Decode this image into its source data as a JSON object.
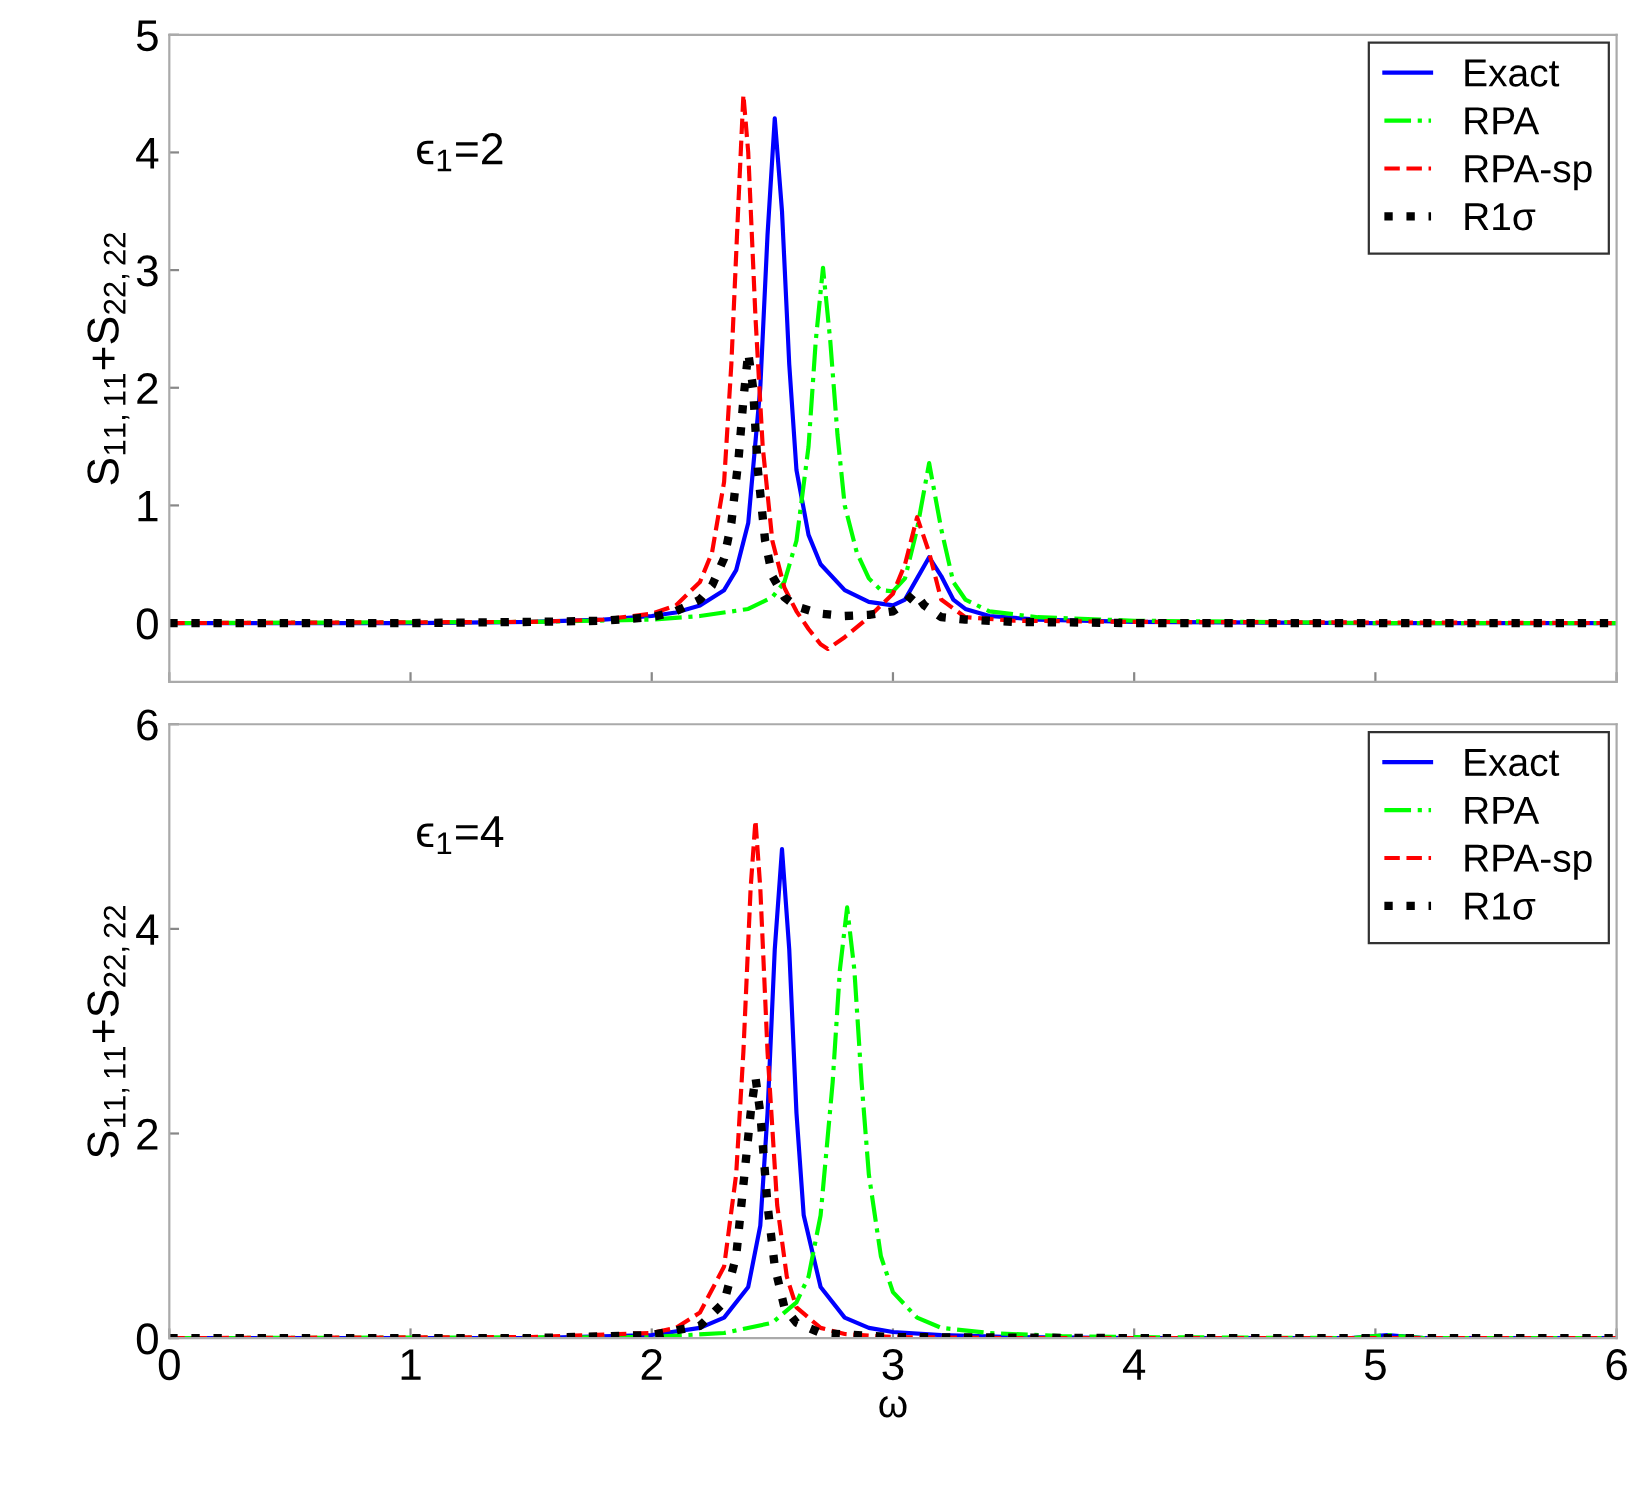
{
  "chart_data": [
    {
      "type": "line",
      "ylabel": "S$_{11,11}$+S$_{22,22}$",
      "annotations": [
        "ϵ$_{1}$=2"
      ],
      "xlim": [
        0,
        6
      ],
      "xticks": [
        0,
        1,
        2,
        3,
        4,
        5,
        6
      ],
      "ylim": [
        -0.5,
        5
      ],
      "yticks": [
        0,
        1,
        2,
        3,
        4,
        5
      ],
      "tick_labels": "y",
      "legend": "top right",
      "grid": false,
      "series": [
        {
          "name": "Exact",
          "color": "#0000ff",
          "line_style": "solid",
          "x": [
            0,
            1,
            1.5,
            1.8,
            2.0,
            2.1,
            2.2,
            2.3,
            2.35,
            2.4,
            2.45,
            2.48,
            2.51,
            2.54,
            2.57,
            2.6,
            2.65,
            2.7,
            2.8,
            2.9,
            3.0,
            3.05,
            3.1,
            3.15,
            3.2,
            3.25,
            3.3,
            3.4,
            3.6,
            4,
            5,
            6
          ],
          "values": [
            0,
            0,
            0.01,
            0.03,
            0.06,
            0.09,
            0.15,
            0.28,
            0.45,
            0.85,
            2.0,
            3.3,
            4.29,
            3.5,
            2.2,
            1.3,
            0.75,
            0.5,
            0.28,
            0.18,
            0.15,
            0.2,
            0.38,
            0.56,
            0.4,
            0.2,
            0.12,
            0.06,
            0.03,
            0.01,
            0,
            0
          ]
        },
        {
          "name": "RPA",
          "color": "#00ff00",
          "line_style": "dashdot",
          "x": [
            0,
            1.5,
            2.0,
            2.2,
            2.4,
            2.5,
            2.55,
            2.6,
            2.65,
            2.68,
            2.71,
            2.74,
            2.77,
            2.8,
            2.85,
            2.9,
            2.95,
            3.0,
            3.05,
            3.1,
            3.15,
            3.2,
            3.25,
            3.3,
            3.4,
            3.6,
            4,
            5,
            6
          ],
          "values": [
            0,
            0.01,
            0.03,
            0.06,
            0.12,
            0.22,
            0.35,
            0.7,
            1.5,
            2.4,
            3.02,
            2.4,
            1.6,
            1.0,
            0.6,
            0.38,
            0.28,
            0.27,
            0.38,
            0.8,
            1.36,
            0.8,
            0.35,
            0.2,
            0.1,
            0.05,
            0.02,
            0,
            0
          ]
        },
        {
          "name": "RPA-sp",
          "color": "#ff0000",
          "line_style": "dashed",
          "x": [
            0,
            1.5,
            1.8,
            2.0,
            2.1,
            2.2,
            2.25,
            2.3,
            2.33,
            2.36,
            2.38,
            2.4,
            2.43,
            2.46,
            2.5,
            2.55,
            2.6,
            2.65,
            2.7,
            2.73,
            2.8,
            2.9,
            3.0,
            3.05,
            3.1,
            3.15,
            3.2,
            3.3,
            3.5,
            4,
            6
          ],
          "values": [
            0,
            0.01,
            0.03,
            0.08,
            0.15,
            0.35,
            0.6,
            1.2,
            2.2,
            3.6,
            4.49,
            4.0,
            2.6,
            1.5,
            0.7,
            0.3,
            0.1,
            -0.05,
            -0.18,
            -0.22,
            -0.12,
            0.05,
            0.25,
            0.5,
            0.9,
            0.6,
            0.2,
            0.05,
            0.02,
            0.01,
            0
          ]
        },
        {
          "name": "R1σ",
          "color": "#000000",
          "line_style": "dotted",
          "x": [
            0,
            1,
            1.5,
            1.8,
            2.0,
            2.1,
            2.2,
            2.25,
            2.3,
            2.33,
            2.36,
            2.38,
            2.4,
            2.42,
            2.44,
            2.47,
            2.5,
            2.55,
            2.6,
            2.7,
            2.8,
            2.9,
            3.0,
            3.05,
            3.09,
            3.13,
            3.2,
            3.3,
            3.5,
            4,
            5,
            6
          ],
          "values": [
            0,
            0,
            0.01,
            0.02,
            0.05,
            0.1,
            0.2,
            0.32,
            0.55,
            0.85,
            1.4,
            1.9,
            2.3,
            2.0,
            1.3,
            0.7,
            0.4,
            0.22,
            0.14,
            0.08,
            0.06,
            0.07,
            0.1,
            0.17,
            0.26,
            0.15,
            0.05,
            0.03,
            0.01,
            0,
            0,
            0
          ]
        }
      ]
    },
    {
      "type": "line",
      "ylabel": "S$_{11,11}$+S$_{22,22}$",
      "xlabel": "ω",
      "annotations": [
        "ϵ$_{1}$=4"
      ],
      "xlim": [
        0,
        6
      ],
      "xticks": [
        0,
        1,
        2,
        3,
        4,
        5,
        6
      ],
      "ylim": [
        0,
        6
      ],
      "yticks": [
        0,
        2,
        4,
        6
      ],
      "legend": "top right",
      "grid": false,
      "series": [
        {
          "name": "Exact",
          "color": "#0000ff",
          "line_style": "solid",
          "x": [
            0,
            1.5,
            2.0,
            2.2,
            2.3,
            2.4,
            2.45,
            2.48,
            2.51,
            2.54,
            2.57,
            2.6,
            2.63,
            2.7,
            2.8,
            2.9,
            3.0,
            3.2,
            3.5,
            4,
            4.9,
            5.05,
            5.2,
            6
          ],
          "values": [
            0,
            0,
            0.03,
            0.1,
            0.2,
            0.5,
            1.1,
            2.2,
            3.8,
            4.78,
            3.8,
            2.2,
            1.2,
            0.5,
            0.2,
            0.1,
            0.06,
            0.03,
            0.01,
            0,
            0,
            0.03,
            0,
            0
          ]
        },
        {
          "name": "RPA",
          "color": "#00ff00",
          "line_style": "dashdot",
          "x": [
            0,
            2,
            2.3,
            2.5,
            2.6,
            2.65,
            2.7,
            2.75,
            2.78,
            2.81,
            2.84,
            2.87,
            2.9,
            2.95,
            3.0,
            3.1,
            3.2,
            3.4,
            3.7,
            4,
            4.9,
            5.05,
            5.2,
            6
          ],
          "values": [
            0,
            0.01,
            0.05,
            0.15,
            0.35,
            0.6,
            1.2,
            2.5,
            3.6,
            4.21,
            3.6,
            2.5,
            1.6,
            0.8,
            0.45,
            0.2,
            0.1,
            0.05,
            0.02,
            0.01,
            0,
            0.03,
            0,
            0
          ]
        },
        {
          "name": "RPA-sp",
          "color": "#ff0000",
          "line_style": "dashed",
          "x": [
            0,
            1.5,
            2.0,
            2.1,
            2.2,
            2.3,
            2.35,
            2.38,
            2.41,
            2.43,
            2.45,
            2.48,
            2.52,
            2.56,
            2.6,
            2.7,
            2.8,
            3.0,
            3.5,
            6
          ],
          "values": [
            0,
            0.01,
            0.05,
            0.1,
            0.25,
            0.7,
            1.6,
            2.8,
            4.4,
            5.06,
            4.4,
            2.8,
            1.3,
            0.6,
            0.3,
            0.1,
            0.04,
            0.01,
            0,
            0
          ]
        },
        {
          "name": "R1σ",
          "color": "#000000",
          "line_style": "dotted",
          "x": [
            0,
            1.5,
            2.0,
            2.2,
            2.3,
            2.35,
            2.38,
            2.41,
            2.43,
            2.45,
            2.48,
            2.51,
            2.55,
            2.6,
            2.7,
            3.0,
            4,
            6
          ],
          "values": [
            0,
            0,
            0.03,
            0.12,
            0.35,
            0.8,
            1.5,
            2.2,
            2.55,
            2.2,
            1.3,
            0.7,
            0.3,
            0.15,
            0.05,
            0.01,
            0,
            0
          ]
        }
      ]
    }
  ]
}
